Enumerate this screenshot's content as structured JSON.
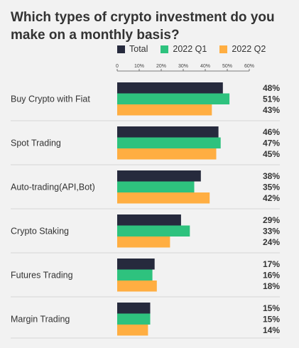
{
  "title": "Which types of crypto investment do you make on a monthly basis?",
  "chart_data": {
    "type": "bar",
    "orientation": "horizontal",
    "title": "Which types of crypto investment do you make on a monthly basis?",
    "categories": [
      "Buy Crypto with Fiat",
      "Spot Trading",
      "Auto-trading(API,Bot)",
      "Crypto Staking",
      "Futures Trading",
      "Margin Trading"
    ],
    "series": [
      {
        "name": "Total",
        "color": "#262a3d",
        "values": [
          48,
          46,
          38,
          29,
          17,
          15
        ]
      },
      {
        "name": "2022 Q1",
        "color": "#2ec27e",
        "values": [
          51,
          47,
          35,
          33,
          16,
          15
        ]
      },
      {
        "name": "2022 Q2",
        "color": "#ffae42",
        "values": [
          43,
          45,
          42,
          24,
          18,
          14
        ]
      }
    ],
    "x_ticks": [
      "0",
      "10%",
      "20%",
      "30%",
      "40%",
      "50%",
      "60%"
    ],
    "xlim": [
      0,
      60
    ],
    "value_labels": [
      [
        "48%",
        "51%",
        "43%"
      ],
      [
        "46%",
        "47%",
        "45%"
      ],
      [
        "38%",
        "35%",
        "42%"
      ],
      [
        "29%",
        "33%",
        "24%"
      ],
      [
        "17%",
        "16%",
        "18%"
      ],
      [
        "15%",
        "15%",
        "14%"
      ]
    ],
    "legend_position": "top"
  }
}
